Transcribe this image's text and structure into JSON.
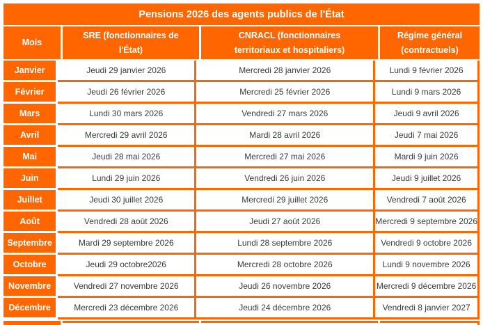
{
  "colors": {
    "orange": "#FF6600",
    "date_text": "#3A3A3A"
  },
  "title": "Pensions 2026 des agents publics de l'État",
  "header": {
    "month_label": "Mois",
    "sre": {
      "line1": "SRE (fonctionnaires de",
      "line2": "l'État)"
    },
    "cnracl": {
      "line1": "CNRACL (fonctionnaires",
      "line2": "territoriaux et hospitaliers)"
    },
    "regime": {
      "line1": "Régime général",
      "line2": "(contractuels)"
    }
  },
  "rows": [
    {
      "month": "Janvier",
      "sre": "Jeudi 29 janvier 2026",
      "cnracl": "Mercredi 28 janvier 2026",
      "regime": "Lundi 9 février 2026"
    },
    {
      "month": "Février",
      "sre": "Jeudi 26 février 2026",
      "cnracl": "Mercredi 25 février 2026",
      "regime": "Lundi 9 mars 2026"
    },
    {
      "month": "Mars",
      "sre": "Lundi 30 mars 2026",
      "cnracl": "Vendredi 27 mars 2026",
      "regime": "Jeudi 9 avril 2026"
    },
    {
      "month": "Avril",
      "sre": "Mercredi 29 avril 2026",
      "cnracl": "Mardi 28 avril 2026",
      "regime": "Jeudi 7 mai 2026"
    },
    {
      "month": "Mai",
      "sre": "Jeudi 28 mai 2026",
      "cnracl": "Mercredi 27 mai 2026",
      "regime": "Mardi 9 juin 2026"
    },
    {
      "month": "Juin",
      "sre": "Lundi 29 juin 2026",
      "cnracl": "Vendredi 26 juin 2026",
      "regime": "Jeudi 9 juillet 2026"
    },
    {
      "month": "Juillet",
      "sre": "Jeudi 30 juillet 2026",
      "cnracl": "Mercredi 29 juillet 2026",
      "regime": "Vendredi 7 août 2026"
    },
    {
      "month": "Août",
      "sre": "Vendredi 28 août 2026",
      "cnracl": "Jeudi 27 août 2026",
      "regime": "Mercredi 9 septembre 2026"
    },
    {
      "month": "Septembre",
      "sre": "Mardi 29 septembre 2026",
      "cnracl": "Lundi 28 septembre 2026",
      "regime": "Vendredi 9 octobre 2026"
    },
    {
      "month": "Octobre",
      "sre": "Jeudi 29 octobre2026",
      "cnracl": "Mercredi 28 octobre 2026",
      "regime": "Lundi 9 novembre 2026"
    },
    {
      "month": "Novembre",
      "sre": "Vendredi 27 novembre 2026",
      "cnracl": "Jeudi 26 novembre 2026",
      "regime": "Mercredi 9 décembre 2026"
    },
    {
      "month": "Décembre",
      "sre": "Mercredi 23 décembre 2026",
      "cnracl": "Jeudi 24 décembre 2026",
      "regime": "Vendredi 8 janvier 2027"
    }
  ]
}
